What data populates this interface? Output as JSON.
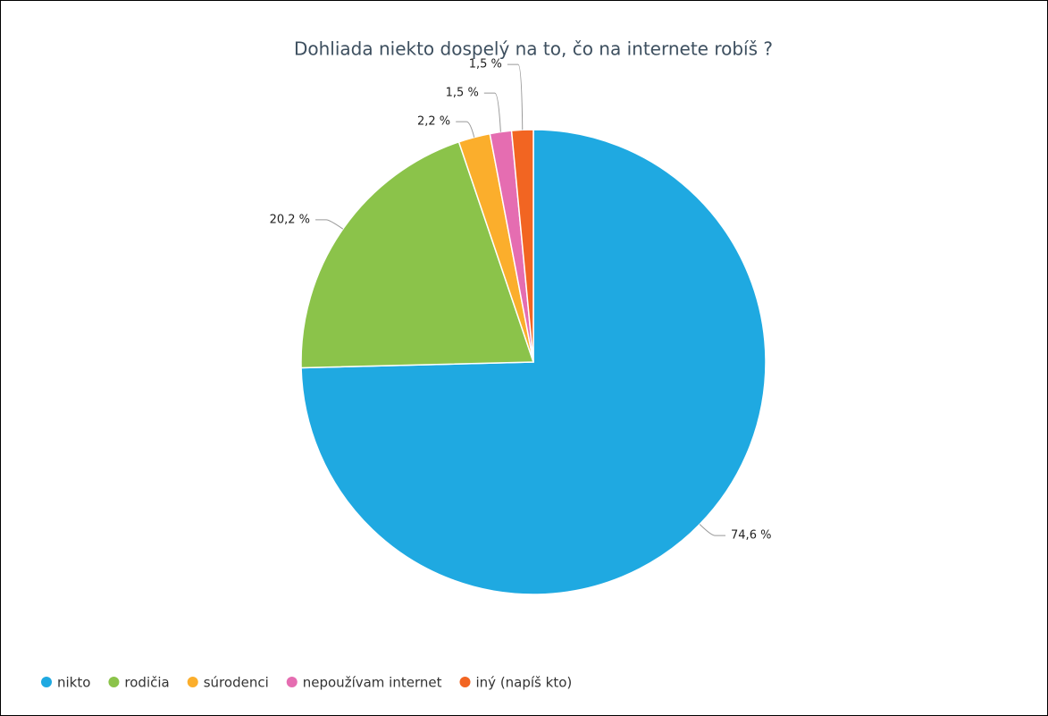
{
  "chart_data": {
    "type": "pie",
    "title": "Dohliada niekto dospelý na to, čo na internete robíš ?",
    "categories": [
      "nikto",
      "rodičia",
      "súrodenci",
      "nepoužívam internet",
      "iný (napíš kto)"
    ],
    "values": [
      74.6,
      20.2,
      2.2,
      1.5,
      1.5
    ],
    "value_labels": [
      "74,6 %",
      "20,2 %",
      "2,2 %",
      "1,5 %",
      "1,5 %"
    ],
    "colors": [
      "#1fa9e1",
      "#8bc34a",
      "#fbae2c",
      "#e56db1",
      "#f26522"
    ]
  }
}
